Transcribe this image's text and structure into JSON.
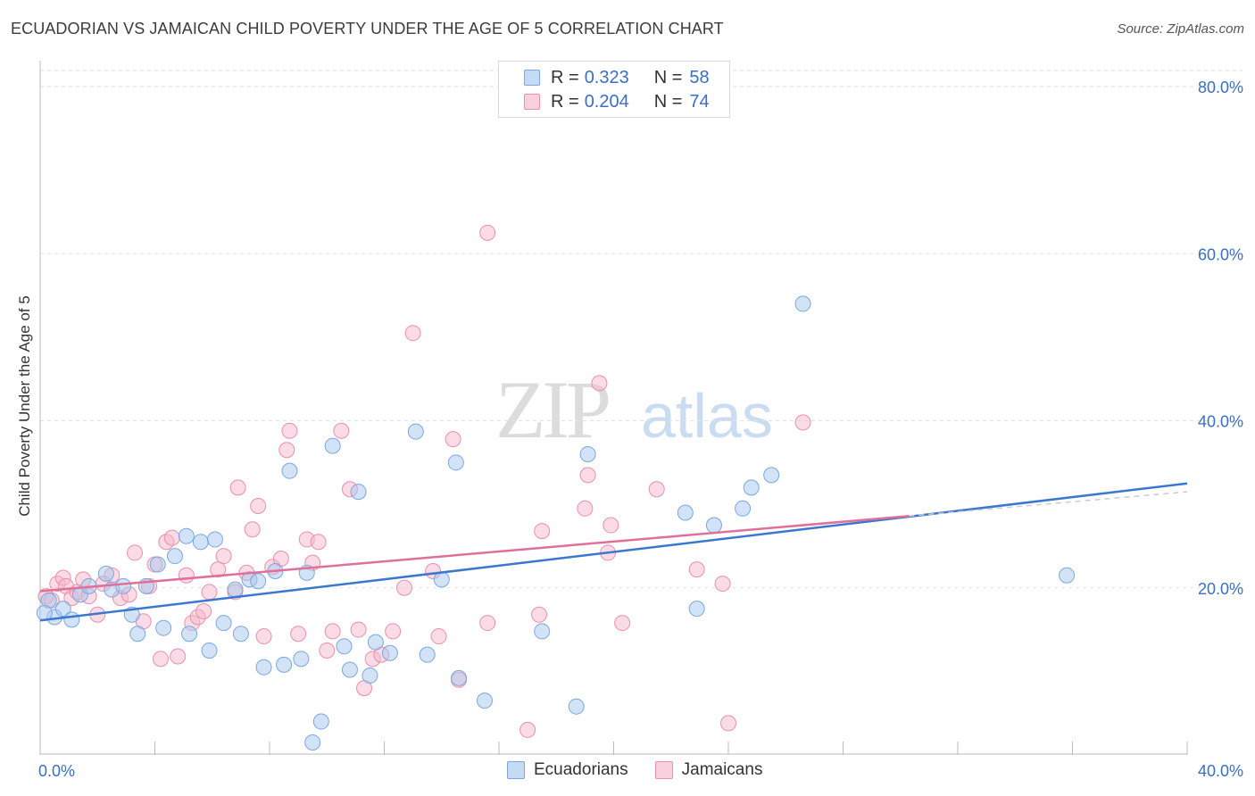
{
  "header": {
    "title": "ECUADORIAN VS JAMAICAN CHILD POVERTY UNDER THE AGE OF 5 CORRELATION CHART",
    "source": "Source: ZipAtlas.com"
  },
  "watermark": {
    "zip": "ZIP",
    "atlas": "atlas"
  },
  "legend": {
    "rows": [
      {
        "r_label": "R =",
        "r_value": "0.323",
        "n_label": "N =",
        "n_value": "58",
        "color": "#a8c8f0"
      },
      {
        "r_label": "R =",
        "r_value": "0.204",
        "n_label": "N =",
        "n_value": "74",
        "color": "#f7b8cb"
      }
    ]
  },
  "bottom_legend": {
    "ecuadorians": "Ecuadorians",
    "jamaicans": "Jamaicans"
  },
  "colors": {
    "ecuadorian_fill": "#a8c8f0",
    "ecuadorian_stroke": "#7aa7df",
    "ecuadorian_line": "#3a78d0",
    "jamaican_fill": "#f7b8cb",
    "jamaican_stroke": "#ec8fab",
    "jamaican_line": "#e0709a",
    "tick_label": "#3a6fc4",
    "grid": "#e2e2e2"
  },
  "chart_data": {
    "type": "scatter",
    "title": "ECUADORIAN VS JAMAICAN CHILD POVERTY UNDER THE AGE OF 5 CORRELATION CHART",
    "xlabel": "",
    "ylabel": "Child Poverty Under the Age of 5",
    "xlim": [
      0,
      40
    ],
    "ylim": [
      0,
      82
    ],
    "x_tick_labels": [
      "0.0%",
      "40.0%"
    ],
    "y_ticks": [
      20,
      40,
      60,
      80
    ],
    "y_tick_labels": [
      "20.0%",
      "40.0%",
      "60.0%",
      "80.0%"
    ],
    "grid": true,
    "legend_position": "top-center",
    "series": [
      {
        "name": "Ecuadorians",
        "r": 0.323,
        "n": 58,
        "trend": {
          "x0": 0,
          "y0": 16.1,
          "x1": 40,
          "y1": 32.5
        },
        "points": [
          [
            0.3,
            18.5
          ],
          [
            0.5,
            16.5
          ],
          [
            0.8,
            17.5
          ],
          [
            1.1,
            16.2
          ],
          [
            1.4,
            19.2
          ],
          [
            1.7,
            20.2
          ],
          [
            2.3,
            21.7
          ],
          [
            2.5,
            19.8
          ],
          [
            2.9,
            20.2
          ],
          [
            3.2,
            16.8
          ],
          [
            3.4,
            14.5
          ],
          [
            3.7,
            20.2
          ],
          [
            4.1,
            22.8
          ],
          [
            4.3,
            15.2
          ],
          [
            4.7,
            23.8
          ],
          [
            5.1,
            26.2
          ],
          [
            5.2,
            14.5
          ],
          [
            5.6,
            25.5
          ],
          [
            5.9,
            12.5
          ],
          [
            6.1,
            25.8
          ],
          [
            6.4,
            15.8
          ],
          [
            6.8,
            19.8
          ],
          [
            7.0,
            14.5
          ],
          [
            7.3,
            21.0
          ],
          [
            7.6,
            20.8
          ],
          [
            7.8,
            10.5
          ],
          [
            8.2,
            22.0
          ],
          [
            8.5,
            10.8
          ],
          [
            8.7,
            34.0
          ],
          [
            9.1,
            11.5
          ],
          [
            9.3,
            21.8
          ],
          [
            9.5,
            1.5
          ],
          [
            9.8,
            4.0
          ],
          [
            10.2,
            37.0
          ],
          [
            10.6,
            13.0
          ],
          [
            10.8,
            10.2
          ],
          [
            11.1,
            31.5
          ],
          [
            11.5,
            9.5
          ],
          [
            11.7,
            13.5
          ],
          [
            12.2,
            12.2
          ],
          [
            13.1,
            38.7
          ],
          [
            13.5,
            12.0
          ],
          [
            14.0,
            21.0
          ],
          [
            14.5,
            35.0
          ],
          [
            14.6,
            9.2
          ],
          [
            15.5,
            6.5
          ],
          [
            17.5,
            14.8
          ],
          [
            18.7,
            5.8
          ],
          [
            19.1,
            36.0
          ],
          [
            22.5,
            29.0
          ],
          [
            22.9,
            17.5
          ],
          [
            23.5,
            27.5
          ],
          [
            24.5,
            29.5
          ],
          [
            24.8,
            32.0
          ],
          [
            25.5,
            33.5
          ],
          [
            26.6,
            54.0
          ],
          [
            35.8,
            21.5
          ],
          [
            0.15,
            17.0
          ]
        ]
      },
      {
        "name": "Jamaicans",
        "r": 0.204,
        "n": 74,
        "trend": {
          "x0": 0,
          "y0": 19.6,
          "x1": 30.3,
          "y1": 28.6,
          "x_dash_end": 40,
          "y_dash_end": 31.5
        },
        "points": [
          [
            0.2,
            19.0
          ],
          [
            0.4,
            18.5
          ],
          [
            0.6,
            20.5
          ],
          [
            0.8,
            21.2
          ],
          [
            0.9,
            20.2
          ],
          [
            1.1,
            18.8
          ],
          [
            1.3,
            19.5
          ],
          [
            1.5,
            21.0
          ],
          [
            1.7,
            19.0
          ],
          [
            2.0,
            16.8
          ],
          [
            2.2,
            20.5
          ],
          [
            2.5,
            21.5
          ],
          [
            2.8,
            18.8
          ],
          [
            3.1,
            19.2
          ],
          [
            3.3,
            24.2
          ],
          [
            3.6,
            16.0
          ],
          [
            3.8,
            20.2
          ],
          [
            4.0,
            22.8
          ],
          [
            4.2,
            11.5
          ],
          [
            4.4,
            25.5
          ],
          [
            4.6,
            26.0
          ],
          [
            4.8,
            11.8
          ],
          [
            5.1,
            21.5
          ],
          [
            5.3,
            15.8
          ],
          [
            5.5,
            16.5
          ],
          [
            5.7,
            17.2
          ],
          [
            5.9,
            19.5
          ],
          [
            6.2,
            22.2
          ],
          [
            6.4,
            23.8
          ],
          [
            6.8,
            19.5
          ],
          [
            6.9,
            32.0
          ],
          [
            7.2,
            21.8
          ],
          [
            7.4,
            27.0
          ],
          [
            7.6,
            29.8
          ],
          [
            7.8,
            14.2
          ],
          [
            8.1,
            22.5
          ],
          [
            8.4,
            23.5
          ],
          [
            8.6,
            36.5
          ],
          [
            8.7,
            38.8
          ],
          [
            9.0,
            14.5
          ],
          [
            9.3,
            25.8
          ],
          [
            9.7,
            25.5
          ],
          [
            9.5,
            23.0
          ],
          [
            10.0,
            12.5
          ],
          [
            10.2,
            14.8
          ],
          [
            10.5,
            38.8
          ],
          [
            10.8,
            31.8
          ],
          [
            11.1,
            15.0
          ],
          [
            11.3,
            8.0
          ],
          [
            11.6,
            11.5
          ],
          [
            11.9,
            12.0
          ],
          [
            12.3,
            14.8
          ],
          [
            12.7,
            20.0
          ],
          [
            13.0,
            50.5
          ],
          [
            13.7,
            22.0
          ],
          [
            13.9,
            14.2
          ],
          [
            14.4,
            37.8
          ],
          [
            14.6,
            9.0
          ],
          [
            15.6,
            15.8
          ],
          [
            17.0,
            3.0
          ],
          [
            17.4,
            16.8
          ],
          [
            17.5,
            26.8
          ],
          [
            19.0,
            29.5
          ],
          [
            19.1,
            33.5
          ],
          [
            19.5,
            44.5
          ],
          [
            19.8,
            24.2
          ],
          [
            19.9,
            27.5
          ],
          [
            20.3,
            15.8
          ],
          [
            21.5,
            31.8
          ],
          [
            22.9,
            22.2
          ],
          [
            23.8,
            20.5
          ],
          [
            24.0,
            3.8
          ],
          [
            26.6,
            39.8
          ],
          [
            15.6,
            62.5
          ]
        ]
      }
    ]
  }
}
